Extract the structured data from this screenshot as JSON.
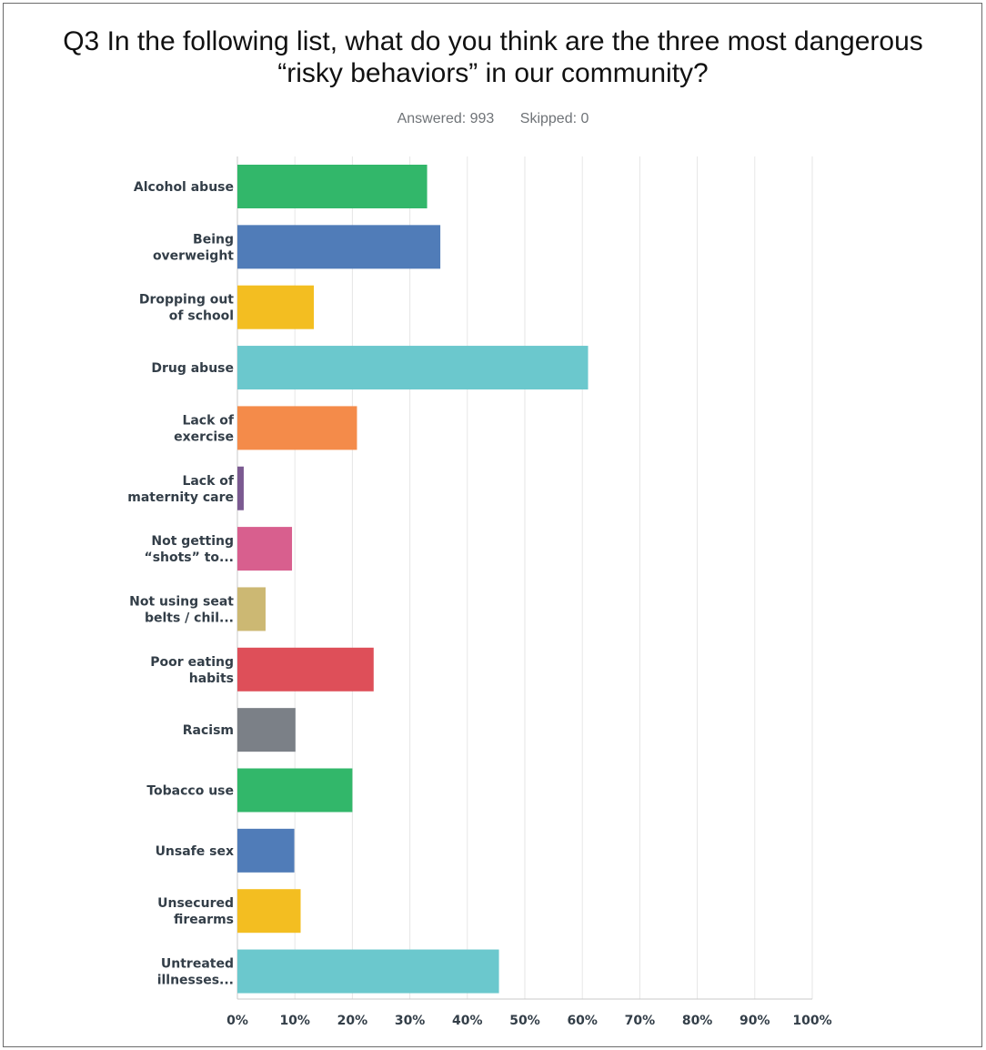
{
  "header": {
    "title_line1": "Q3 In the following list, what do you think are the three most dangerous",
    "title_line2": "“risky behaviors” in our community?",
    "answered": "Answered: 993",
    "skipped": "Skipped: 0"
  },
  "chart_data": {
    "type": "bar",
    "orientation": "horizontal",
    "title": "Q3 In the following list, what do you think are the three most dangerous “risky behaviors” in our community?",
    "categories": [
      [
        "Alcohol abuse"
      ],
      [
        "Being",
        "overweight"
      ],
      [
        "Dropping out",
        "of school"
      ],
      [
        "Drug abuse"
      ],
      [
        "Lack of",
        "exercise"
      ],
      [
        "Lack of",
        "maternity care"
      ],
      [
        "Not getting",
        "“shots” to..."
      ],
      [
        "Not using seat",
        "belts / chil..."
      ],
      [
        "Poor eating",
        "habits"
      ],
      [
        "Racism"
      ],
      [
        "Tobacco use"
      ],
      [
        "Unsafe sex"
      ],
      [
        "Unsecured",
        "firearms"
      ],
      [
        "Untreated",
        "illnesses..."
      ]
    ],
    "values": [
      33,
      35.3,
      13.3,
      61,
      20.8,
      1.1,
      9.5,
      4.9,
      23.7,
      10.1,
      20,
      9.9,
      11,
      45.5
    ],
    "colors": [
      "#32b76a",
      "#507cb8",
      "#f3be21",
      "#6bc8cd",
      "#f48b4a",
      "#7b5a91",
      "#d85f8e",
      "#ccb873",
      "#de4f59",
      "#7b8087",
      "#32b76a",
      "#507cb8",
      "#f3be21",
      "#6bc8cd"
    ],
    "xlim": [
      0,
      100
    ],
    "xticks": [
      "0%",
      "10%",
      "20%",
      "30%",
      "40%",
      "50%",
      "60%",
      "70%",
      "80%",
      "90%",
      "100%"
    ],
    "grid": true
  }
}
